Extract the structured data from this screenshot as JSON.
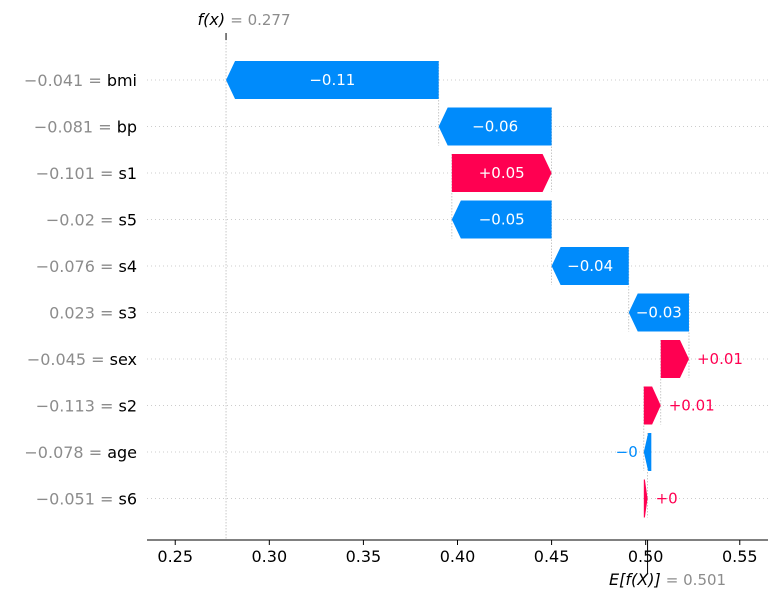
{
  "chart_data": {
    "type": "waterfall",
    "fx": {
      "label_prefix": "f(x)",
      "label_value": "0.277",
      "value": 0.277
    },
    "ex": {
      "label_prefix": "E[f(X)]",
      "label_value": "0.501",
      "value": 0.501
    },
    "xlim": [
      0.235,
      0.565
    ],
    "xticks": [
      {
        "value": 0.25,
        "label": "0.25"
      },
      {
        "value": 0.3,
        "label": "0.30"
      },
      {
        "value": 0.35,
        "label": "0.35"
      },
      {
        "value": 0.4,
        "label": "0.40"
      },
      {
        "value": 0.45,
        "label": "0.45"
      },
      {
        "value": 0.5,
        "label": "0.50"
      },
      {
        "value": 0.55,
        "label": "0.55"
      }
    ],
    "features": [
      {
        "name": "bmi",
        "value_label": "−0.041",
        "start": 0.39,
        "end": 0.277,
        "label": "−0.11"
      },
      {
        "name": "bp",
        "value_label": "−0.081",
        "start": 0.45,
        "end": 0.39,
        "label": "−0.06"
      },
      {
        "name": "s1",
        "value_label": "−0.101",
        "start": 0.397,
        "end": 0.45,
        "label": "+0.05"
      },
      {
        "name": "s5",
        "value_label": "−0.02",
        "start": 0.45,
        "end": 0.397,
        "label": "−0.05"
      },
      {
        "name": "s4",
        "value_label": "−0.076",
        "start": 0.491,
        "end": 0.45,
        "label": "−0.04"
      },
      {
        "name": "s3",
        "value_label": "0.023",
        "start": 0.523,
        "end": 0.491,
        "label": "−0.03"
      },
      {
        "name": "sex",
        "value_label": "−0.045",
        "start": 0.508,
        "end": 0.523,
        "label": "+0.01"
      },
      {
        "name": "s2",
        "value_label": "−0.113",
        "start": 0.499,
        "end": 0.508,
        "label": "+0.01"
      },
      {
        "name": "age",
        "value_label": "−0.078",
        "start": 0.503,
        "end": 0.499,
        "label": "−0"
      },
      {
        "name": "s6",
        "value_label": "−0.051",
        "start": 0.499,
        "end": 0.501,
        "label": "+0"
      }
    ],
    "colors": {
      "positive": "#ff0051",
      "negative": "#008bfb",
      "gray": "#8c8c8c"
    }
  }
}
